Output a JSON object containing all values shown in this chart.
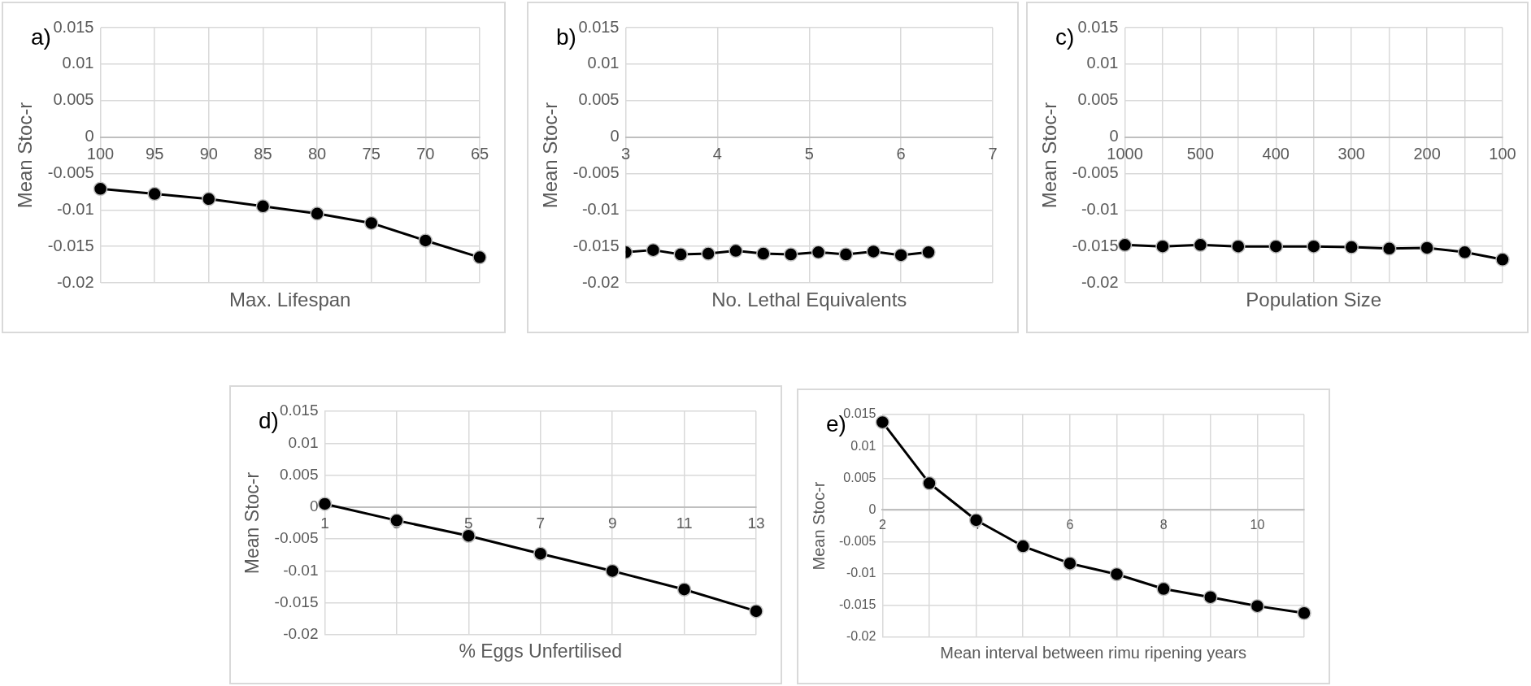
{
  "chart_data": [
    {
      "type": "line",
      "title": "a)",
      "xlabel": "Max. Lifespan",
      "ylabel": "Mean Stoc-r",
      "categories": [
        "100",
        "95",
        "90",
        "85",
        "80",
        "75",
        "70",
        "65"
      ],
      "values": [
        -0.0071,
        -0.0078,
        -0.0085,
        -0.0095,
        -0.0105,
        -0.0118,
        -0.0142,
        -0.0165
      ],
      "color": "#000000",
      "ylim": [
        -0.02,
        0.015
      ],
      "yticks": [
        -0.02,
        -0.015,
        -0.01,
        -0.005,
        0,
        0.005,
        0.01,
        0.015
      ],
      "grid": true,
      "marker": "circle"
    },
    {
      "type": "line",
      "title": "b)",
      "xlabel": "No. Lethal Equivalents",
      "ylabel": "Mean Stoc-r",
      "x": [
        3,
        3.3,
        3.6,
        3.9,
        4.2,
        4.5,
        4.8,
        5.1,
        5.4,
        5.7,
        6,
        6.3
      ],
      "values": [
        -0.0158,
        -0.0155,
        -0.0161,
        -0.016,
        -0.0156,
        -0.016,
        -0.0161,
        -0.0158,
        -0.0161,
        -0.0157,
        -0.0162,
        -0.0158
      ],
      "color": "#000000",
      "xlim": [
        3,
        7
      ],
      "xticks": [
        3,
        4,
        5,
        6,
        7
      ],
      "ylim": [
        -0.02,
        0.015
      ],
      "yticks": [
        -0.02,
        -0.015,
        -0.01,
        -0.005,
        0,
        0.005,
        0.01,
        0.015
      ],
      "grid": true,
      "marker": "circle"
    },
    {
      "type": "line",
      "title": "c)",
      "xlabel": "Population Size",
      "ylabel": "Mean Stoc-r",
      "categories": [
        "1000",
        null,
        "500",
        null,
        "400",
        null,
        "300",
        null,
        "200",
        null,
        "100"
      ],
      "values": [
        -0.0148,
        -0.015,
        -0.0148,
        -0.015,
        -0.015,
        -0.015,
        -0.0151,
        -0.0153,
        -0.0152,
        -0.0158,
        -0.0168
      ],
      "color": "#000000",
      "ylim": [
        -0.02,
        0.015
      ],
      "yticks": [
        -0.02,
        -0.015,
        -0.01,
        -0.005,
        0,
        0.005,
        0.01,
        0.015
      ],
      "grid": true,
      "marker": "circle"
    },
    {
      "type": "line",
      "title": "d)",
      "xlabel": "% Eggs Unfertilised",
      "ylabel": "Mean Stoc-r",
      "categories": [
        "1",
        "3",
        "5",
        "7",
        "9",
        "11",
        "13"
      ],
      "values": [
        0.0005,
        -0.0021,
        -0.0045,
        -0.0073,
        -0.01,
        -0.0129,
        -0.0163
      ],
      "color": "#000000",
      "ylim": [
        -0.02,
        0.015
      ],
      "yticks": [
        -0.02,
        -0.015,
        -0.01,
        -0.005,
        0,
        0.005,
        0.01,
        0.015
      ],
      "grid": true,
      "marker": "circle"
    },
    {
      "type": "line",
      "title": "e)",
      "xlabel": "Mean interval between rimu ripening years",
      "ylabel": "Mean Stoc-r",
      "categories": [
        "2",
        null,
        "4",
        null,
        "6",
        null,
        "8",
        null,
        "10",
        null
      ],
      "values": [
        0.0138,
        0.0042,
        -0.0016,
        -0.0057,
        -0.0084,
        -0.0101,
        -0.0124,
        -0.0137,
        -0.0151,
        -0.0162
      ],
      "color": "#000000",
      "ylim": [
        -0.02,
        0.015
      ],
      "yticks": [
        -0.02,
        -0.015,
        -0.01,
        -0.005,
        0,
        0.005,
        0.01,
        0.015
      ],
      "grid": true,
      "marker": "circle"
    }
  ]
}
